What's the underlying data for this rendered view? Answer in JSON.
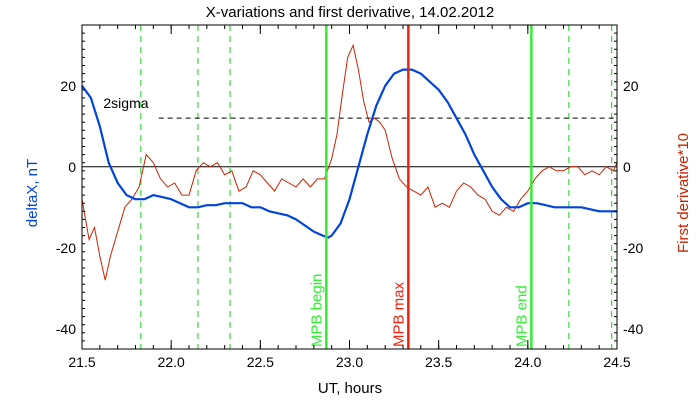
{
  "chart_data": {
    "type": "line",
    "title": "X-variations and first derivative, 14.02.2012",
    "xlabel": "UT, hours",
    "ylabel_left": "deltaX, nT",
    "ylabel_right": "First derivative*10",
    "xlim": [
      21.5,
      24.5
    ],
    "ylim": [
      -45,
      35
    ],
    "x_ticks": [
      21.5,
      22.0,
      22.5,
      23.0,
      23.5,
      24.0,
      24.5
    ],
    "x_tick_labels": [
      "21.5",
      "22.0",
      "22.5",
      "23.0",
      "23.5",
      "24.0",
      "24.5"
    ],
    "y_ticks": [
      20,
      0,
      -20,
      -40
    ],
    "y_tick_labels": [
      "20",
      "0",
      "-20",
      "-40"
    ],
    "colors": {
      "deltaX": "#0044dd",
      "derivative": "#cc2200",
      "dashed_markers": "#33dd33",
      "mpb_begin": "#33ee33",
      "mpb_max": "#ee2211",
      "mpb_end": "#33ee33",
      "reference_lines": "#000000"
    },
    "threshold": {
      "label": "2sigma",
      "y": 12
    },
    "zero_line": {
      "y": 0
    },
    "dashed_markers": [
      21.83,
      22.15,
      22.33,
      24.23,
      24.47
    ],
    "vertical_events": [
      {
        "label": "MPB begin",
        "x": 22.87,
        "color": "#33ee33"
      },
      {
        "label": "MPB max",
        "x": 23.33,
        "color": "#ee2211"
      },
      {
        "label": "MPB end",
        "x": 24.02,
        "color": "#33ee33"
      }
    ],
    "series": [
      {
        "key": "deltaX",
        "x": [
          21.5,
          21.55,
          21.6,
          21.65,
          21.7,
          21.75,
          21.8,
          21.85,
          21.9,
          21.95,
          22.0,
          22.05,
          22.1,
          22.15,
          22.2,
          22.25,
          22.3,
          22.35,
          22.4,
          22.45,
          22.5,
          22.55,
          22.6,
          22.65,
          22.7,
          22.75,
          22.8,
          22.85,
          22.88,
          22.9,
          22.95,
          23.0,
          23.05,
          23.1,
          23.15,
          23.2,
          23.25,
          23.3,
          23.35,
          23.4,
          23.45,
          23.5,
          23.55,
          23.6,
          23.65,
          23.7,
          23.75,
          23.8,
          23.85,
          23.9,
          23.95,
          24.0,
          24.05,
          24.1,
          24.15,
          24.2,
          24.25,
          24.3,
          24.35,
          24.4,
          24.45,
          24.5
        ],
        "y": [
          20,
          17,
          10,
          1,
          -4,
          -7,
          -8,
          -8,
          -7,
          -7.5,
          -8,
          -9,
          -10,
          -10,
          -9.5,
          -9.5,
          -9,
          -9,
          -9,
          -10,
          -10,
          -11,
          -11.5,
          -12,
          -13,
          -14.5,
          -16,
          -17,
          -17.5,
          -17,
          -14,
          -8,
          0,
          8,
          15,
          20,
          23,
          24,
          24,
          23,
          21,
          19,
          16,
          12,
          8,
          3,
          -1,
          -5,
          -8,
          -10,
          -10,
          -9,
          -9,
          -9.5,
          -10,
          -10,
          -10,
          -10,
          -10.5,
          -11,
          -11,
          -11
        ]
      },
      {
        "key": "derivative",
        "x": [
          21.5,
          21.54,
          21.57,
          21.6,
          21.63,
          21.66,
          21.7,
          21.74,
          21.78,
          21.82,
          21.86,
          21.9,
          21.94,
          21.98,
          22.02,
          22.06,
          22.1,
          22.14,
          22.18,
          22.22,
          22.26,
          22.3,
          22.34,
          22.38,
          22.42,
          22.46,
          22.5,
          22.54,
          22.58,
          22.62,
          22.66,
          22.7,
          22.74,
          22.78,
          22.82,
          22.86,
          22.9,
          22.93,
          22.96,
          22.99,
          23.02,
          23.05,
          23.08,
          23.11,
          23.14,
          23.17,
          23.2,
          23.24,
          23.28,
          23.32,
          23.36,
          23.4,
          23.44,
          23.48,
          23.52,
          23.56,
          23.6,
          23.64,
          23.68,
          23.72,
          23.76,
          23.8,
          23.84,
          23.88,
          23.92,
          23.96,
          24.0,
          24.04,
          24.08,
          24.12,
          24.16,
          24.2,
          24.24,
          24.28,
          24.32,
          24.36,
          24.4,
          24.44,
          24.48,
          24.5
        ],
        "y": [
          -8,
          -18,
          -15,
          -22,
          -28,
          -22,
          -16,
          -10,
          -8,
          -5,
          3,
          1,
          -3,
          -5,
          -4,
          -7,
          -7,
          -1,
          1,
          0,
          1,
          -2,
          -1,
          -6,
          -5,
          -1,
          -2,
          -4,
          -6,
          -3,
          -4,
          -5,
          -3,
          -5,
          -3,
          -3,
          2,
          8,
          18,
          27,
          30,
          24,
          16,
          11,
          12,
          11,
          9,
          2,
          -3,
          -5,
          -6,
          -7,
          -5,
          -10,
          -9,
          -10,
          -6,
          -4,
          -5,
          -7,
          -8,
          -11,
          -12,
          -10,
          -11,
          -8,
          -6,
          -3,
          -1,
          0,
          -1,
          -1,
          0,
          0,
          -2,
          -1,
          -2,
          0,
          -1,
          1
        ]
      }
    ]
  }
}
